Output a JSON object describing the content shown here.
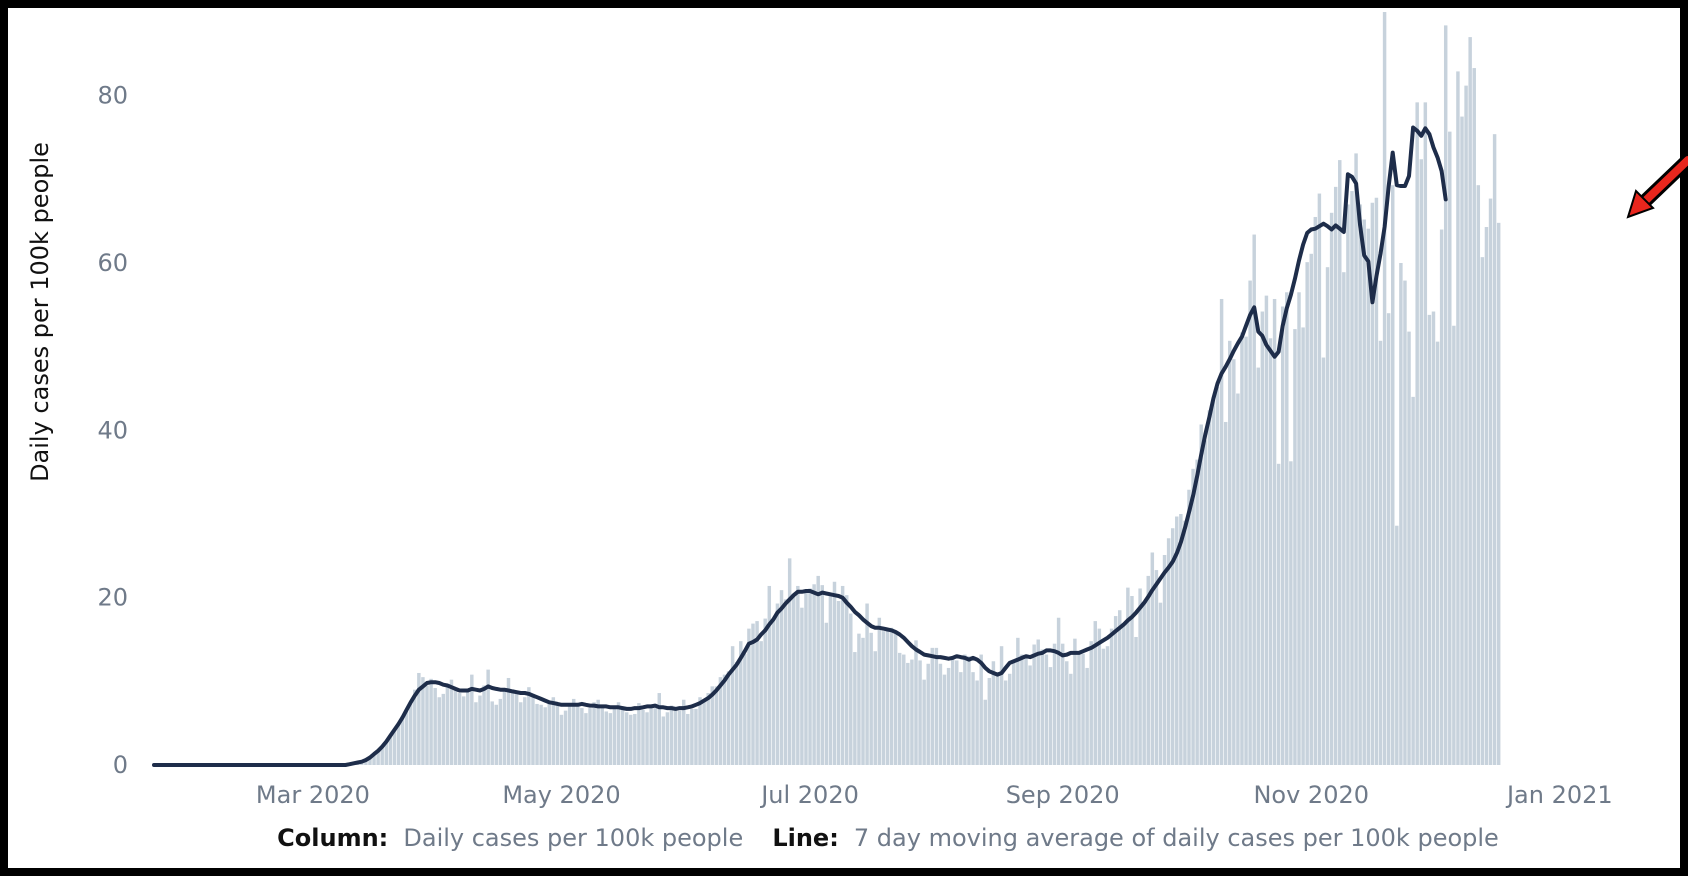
{
  "chart_data": {
    "type": "bar",
    "ylabel": "Daily cases per 100k people",
    "ylim": [
      0,
      90
    ],
    "yticks": [
      0,
      20,
      40,
      60,
      80
    ],
    "x_range": [
      "2020-01-22",
      "2021-01-17"
    ],
    "x_ticks": [
      {
        "date": "2020-03-01",
        "label": "Mar 2020"
      },
      {
        "date": "2020-05-01",
        "label": "May 2020"
      },
      {
        "date": "2020-07-01",
        "label": "Jul 2020"
      },
      {
        "date": "2020-09-01",
        "label": "Sep 2020"
      },
      {
        "date": "2020-11-01",
        "label": "Nov 2020"
      },
      {
        "date": "2021-01-01",
        "label": "Jan 2021"
      }
    ],
    "grid": false,
    "colors": {
      "column": "#c7d2dc",
      "line": "#1e2d4a",
      "arrow": "#e8261d",
      "border": "#000000"
    },
    "series": [
      {
        "kind": "column",
        "name": "Daily cases per 100k people",
        "daily_from": "2020-01-22",
        "values": [
          0,
          0,
          0,
          0,
          0,
          0,
          0,
          0,
          0,
          0,
          0,
          0,
          0,
          0,
          0,
          0,
          0,
          0,
          0,
          0,
          0,
          0,
          0,
          0,
          0,
          0,
          0,
          0,
          0,
          0,
          0,
          0,
          0,
          0,
          0,
          0,
          0,
          0,
          0,
          0,
          0,
          0,
          0,
          0,
          0,
          0,
          0,
          0,
          0.1,
          0.2,
          0.3,
          0.4,
          0.6,
          0.9,
          1.3,
          1.7,
          2.2,
          2.8,
          3.5,
          4.2,
          4.9,
          5.7,
          6.6,
          7.5,
          9,
          11,
          10.5,
          9.5,
          10.3,
          9.2,
          8.1,
          8.5,
          9.5,
          10.2,
          9,
          8.6,
          8.2,
          8.9,
          10.8,
          7.5,
          8.3,
          9.5,
          11.4,
          7.6,
          7.2,
          7.9,
          9.1,
          10.4,
          8.8,
          8.6,
          7.5,
          8.1,
          9.3,
          8.5,
          7.3,
          7.2,
          6.9,
          7.6,
          8.1,
          7.4,
          6,
          6.5,
          7.3,
          7.9,
          7.1,
          6.8,
          6.2,
          6.8,
          7.5,
          7.8,
          7.1,
          6.4,
          6.2,
          7.1,
          7.5,
          7,
          6.3,
          6,
          6.1,
          7.4,
          6.6,
          6.3,
          7.2,
          6.8,
          8.6,
          5.8,
          6.3,
          7.1,
          6.9,
          6.5,
          7.8,
          6.1,
          6.7,
          6.7,
          8.1,
          7.6,
          8.6,
          9.4,
          9.4,
          10.5,
          10.8,
          11.2,
          14.2,
          12.3,
          14.8,
          13.3,
          16.3,
          16.9,
          17.2,
          14.8,
          17.5,
          21.4,
          17.3,
          19.3,
          20.9,
          19.8,
          24.7,
          20.4,
          21.4,
          18.8,
          20.8,
          21.1,
          21.6,
          22.6,
          21.5,
          17,
          20.5,
          21.9,
          19.6,
          21.4,
          20.3,
          18.1,
          13.5,
          15.7,
          15.2,
          19.3,
          15.8,
          13.6,
          17.6,
          16,
          16.1,
          16.4,
          15.9,
          13.4,
          13.2,
          12.2,
          12.6,
          14.9,
          12.5,
          10.2,
          12.1,
          14,
          14,
          12.1,
          10.8,
          11.6,
          12.6,
          12.5,
          11.1,
          13.2,
          13,
          11.1,
          10.1,
          13.2,
          7.8,
          10.4,
          12.4,
          11.1,
          14.2,
          10.1,
          10.9,
          12.6,
          15.2,
          13.2,
          13.1,
          11.9,
          14.4,
          15,
          13.8,
          13.2,
          11.7,
          14.5,
          17.6,
          14.5,
          12.4,
          10.9,
          15.1,
          13.4,
          13.3,
          11.6,
          14.8,
          17.2,
          16.3,
          13.9,
          14.2,
          16.3,
          17.8,
          18.5,
          16.7,
          21.2,
          20.2,
          15.3,
          21.1,
          19.5,
          22.6,
          25.4,
          23.3,
          19.4,
          25.1,
          27.1,
          28.3,
          29.7,
          30,
          29.2,
          32.9,
          35.4,
          36.5,
          40.7,
          38.8,
          42.4,
          43.7,
          45.2,
          55.7,
          41,
          50.7,
          48.5,
          44.4,
          51.7,
          51.2,
          57.9,
          63.4,
          47.5,
          54.2,
          56.1,
          51,
          55.7,
          36,
          54.8,
          56.5,
          36.3,
          52.1,
          56.5,
          52.3,
          60.1,
          61.1,
          65.5,
          68.3,
          48.7,
          59.5,
          66,
          69.1,
          72.3,
          58.9,
          67,
          68.6,
          73.1,
          67,
          65.2,
          64.1,
          67.2,
          67.8,
          50.7,
          94,
          54,
          69.3,
          28.6,
          60,
          57.9,
          51.8,
          44,
          79.2,
          72.4,
          79.2,
          53.8,
          54.2,
          50.6,
          64,
          88.4,
          75.7,
          52.5,
          82.9,
          77.5,
          81.2,
          87,
          83.3,
          69.3,
          60.7,
          64.3,
          67.7,
          75.4,
          64.8
        ]
      },
      {
        "kind": "line",
        "name": "7 day moving average of daily cases per 100k people",
        "daily_from": "2020-01-22",
        "values": [
          0,
          0,
          0,
          0,
          0,
          0,
          0,
          0,
          0,
          0,
          0,
          0,
          0,
          0,
          0,
          0,
          0,
          0,
          0,
          0,
          0,
          0,
          0,
          0,
          0,
          0,
          0,
          0,
          0,
          0,
          0,
          0,
          0,
          0,
          0,
          0,
          0,
          0,
          0,
          0,
          0,
          0,
          0,
          0,
          0,
          0,
          0,
          0,
          0.1,
          0.2,
          0.3,
          0.4,
          0.6,
          0.9,
          1.3,
          1.7,
          2.2,
          2.8,
          3.5,
          4.2,
          4.9,
          5.7,
          6.6,
          7.5,
          8.3,
          9,
          9.4,
          9.8,
          9.9,
          9.9,
          9.8,
          9.6,
          9.5,
          9.3,
          9.1,
          8.9,
          8.9,
          8.9,
          9.1,
          9,
          8.9,
          9.1,
          9.4,
          9.2,
          9.1,
          9,
          9,
          8.9,
          8.8,
          8.7,
          8.6,
          8.6,
          8.5,
          8.3,
          8.1,
          7.9,
          7.7,
          7.5,
          7.4,
          7.3,
          7.2,
          7.2,
          7.2,
          7.2,
          7.2,
          7.3,
          7.2,
          7.1,
          7.1,
          7,
          7,
          7,
          6.9,
          6.9,
          6.9,
          6.8,
          6.7,
          6.7,
          6.8,
          6.8,
          6.9,
          7,
          7,
          7.1,
          6.9,
          6.9,
          6.8,
          6.8,
          6.7,
          6.8,
          6.8,
          6.9,
          7,
          7.2,
          7.4,
          7.7,
          8,
          8.4,
          8.9,
          9.5,
          10.1,
          10.8,
          11.4,
          12,
          12.8,
          13.6,
          14.5,
          14.7,
          15,
          15.6,
          16.1,
          16.8,
          17.4,
          18.2,
          18.7,
          19.3,
          19.8,
          20.3,
          20.7,
          20.7,
          20.8,
          20.8,
          20.6,
          20.4,
          20.6,
          20.5,
          20.4,
          20.3,
          20.2,
          20,
          19.4,
          18.9,
          18.3,
          17.9,
          17.4,
          17,
          16.6,
          16.4,
          16.4,
          16.3,
          16.2,
          16.1,
          15.9,
          15.6,
          15.2,
          14.7,
          14.2,
          13.8,
          13.5,
          13.2,
          13.1,
          13,
          12.9,
          12.9,
          12.8,
          12.7,
          12.8,
          13,
          12.9,
          12.8,
          12.6,
          12.8,
          12.6,
          12.2,
          11.6,
          11.2,
          11,
          10.8,
          11,
          11.6,
          12.2,
          12.4,
          12.6,
          12.8,
          13,
          12.9,
          13.1,
          13.3,
          13.4,
          13.7,
          13.7,
          13.6,
          13.4,
          13.1,
          13.2,
          13.4,
          13.4,
          13.4,
          13.6,
          13.8,
          14,
          14.3,
          14.6,
          14.9,
          15.2,
          15.6,
          16,
          16.4,
          16.8,
          17.3,
          17.7,
          18.2,
          18.8,
          19.4,
          20.1,
          20.9,
          21.6,
          22.3,
          23,
          23.6,
          24.3,
          25.3,
          26.6,
          28.3,
          30.2,
          32.2,
          34.5,
          37.1,
          39.5,
          41.6,
          43.8,
          45.6,
          46.8,
          47.6,
          48.5,
          49.5,
          50.4,
          51.2,
          52.5,
          53.8,
          54.7,
          51.8,
          51.3,
          50.2,
          49.5,
          48.8,
          49.4,
          52.5,
          54.6,
          56.2,
          58.1,
          60.3,
          62.2,
          63.6,
          64,
          64.1,
          64.4,
          64.7,
          64.4,
          64,
          64.5,
          64.1,
          63.7,
          70.6,
          70.3,
          69.5,
          64.5,
          60.9,
          60.2,
          55.3,
          58.4,
          61.1,
          64.3,
          69.2,
          73.2,
          69.3,
          69.2,
          69.2,
          70.4,
          76.2,
          75.8,
          75.2,
          76.1,
          75.4,
          73.8,
          72.6,
          71,
          67.6
        ]
      }
    ],
    "legend": [
      {
        "key": "Column:",
        "text": "Daily cases per 100k people"
      },
      {
        "key": "Line:",
        "text": "7 day moving average of daily cases per 100k people"
      }
    ]
  }
}
